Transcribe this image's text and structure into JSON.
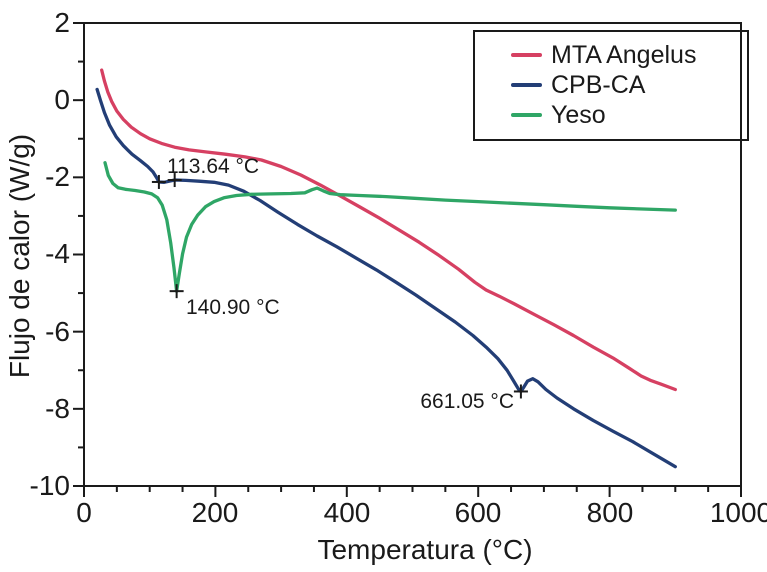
{
  "labels": {
    "x_axis": "Temperatura (°C)",
    "y_axis": "Flujo de calor (W/g)"
  },
  "axes": {
    "x_tick_labels": [
      "0",
      "200",
      "400",
      "600",
      "800",
      "1000"
    ],
    "y_tick_labels": [
      "2",
      "0",
      "-2",
      "-4",
      "-6",
      "-8",
      "-10"
    ]
  },
  "annotations": {
    "peak1": "113.64 °C",
    "peak2": "140.90 °C",
    "peak3": "661.05 °C"
  },
  "legend": {
    "items": [
      {
        "label": "MTA Angelus",
        "color": "#d64062"
      },
      {
        "label": "CPB-CA",
        "color": "#233e76"
      },
      {
        "label": "Yeso",
        "color": "#2fa666"
      }
    ]
  },
  "chart_data": {
    "type": "line",
    "title": "",
    "xlabel": "Temperatura (°C)",
    "ylabel": "Flujo de calor (W/g)",
    "xlim": [
      0,
      1000
    ],
    "ylim": [
      -10,
      2
    ],
    "x_major_ticks": [
      0,
      200,
      400,
      600,
      800,
      1000
    ],
    "x_minor_step": 50,
    "y_major_ticks": [
      2,
      0,
      -2,
      -4,
      -6,
      -8,
      -10
    ],
    "y_minor_step": 1,
    "grid": false,
    "legend_position": "top-right",
    "series": [
      {
        "name": "MTA Angelus",
        "color": "#d64062",
        "points": [
          [
            27,
            0.78
          ],
          [
            31,
            0.5
          ],
          [
            36,
            0.22
          ],
          [
            42,
            -0.03
          ],
          [
            50,
            -0.28
          ],
          [
            60,
            -0.5
          ],
          [
            72,
            -0.7
          ],
          [
            86,
            -0.87
          ],
          [
            100,
            -1.0
          ],
          [
            118,
            -1.12
          ],
          [
            138,
            -1.22
          ],
          [
            160,
            -1.29
          ],
          [
            185,
            -1.34
          ],
          [
            215,
            -1.4
          ],
          [
            245,
            -1.47
          ],
          [
            270,
            -1.55
          ],
          [
            300,
            -1.72
          ],
          [
            330,
            -1.94
          ],
          [
            360,
            -2.2
          ],
          [
            390,
            -2.48
          ],
          [
            420,
            -2.77
          ],
          [
            450,
            -3.06
          ],
          [
            480,
            -3.37
          ],
          [
            510,
            -3.68
          ],
          [
            540,
            -4.02
          ],
          [
            570,
            -4.38
          ],
          [
            595,
            -4.72
          ],
          [
            612,
            -4.92
          ],
          [
            632,
            -5.08
          ],
          [
            655,
            -5.28
          ],
          [
            685,
            -5.55
          ],
          [
            715,
            -5.82
          ],
          [
            745,
            -6.1
          ],
          [
            775,
            -6.4
          ],
          [
            805,
            -6.68
          ],
          [
            830,
            -6.95
          ],
          [
            848,
            -7.15
          ],
          [
            862,
            -7.26
          ],
          [
            878,
            -7.36
          ],
          [
            900,
            -7.5
          ]
        ]
      },
      {
        "name": "CPB-CA",
        "color": "#233e76",
        "points": [
          [
            20,
            0.28
          ],
          [
            25,
            0.0
          ],
          [
            31,
            -0.32
          ],
          [
            39,
            -0.65
          ],
          [
            49,
            -0.95
          ],
          [
            60,
            -1.18
          ],
          [
            73,
            -1.4
          ],
          [
            86,
            -1.57
          ],
          [
            97,
            -1.72
          ],
          [
            105,
            -1.86
          ],
          [
            111,
            -2.02
          ],
          [
            114,
            -2.12
          ],
          [
            122,
            -2.13
          ],
          [
            138,
            -2.07
          ],
          [
            155,
            -2.08
          ],
          [
            175,
            -2.1
          ],
          [
            198,
            -2.13
          ],
          [
            220,
            -2.2
          ],
          [
            243,
            -2.36
          ],
          [
            268,
            -2.6
          ],
          [
            295,
            -2.9
          ],
          [
            325,
            -3.22
          ],
          [
            355,
            -3.52
          ],
          [
            385,
            -3.8
          ],
          [
            415,
            -4.1
          ],
          [
            445,
            -4.4
          ],
          [
            475,
            -4.72
          ],
          [
            505,
            -5.05
          ],
          [
            535,
            -5.4
          ],
          [
            565,
            -5.75
          ],
          [
            592,
            -6.1
          ],
          [
            612,
            -6.4
          ],
          [
            630,
            -6.7
          ],
          [
            644,
            -7.0
          ],
          [
            654,
            -7.28
          ],
          [
            661,
            -7.48
          ],
          [
            665,
            -7.55
          ],
          [
            669,
            -7.45
          ],
          [
            675,
            -7.28
          ],
          [
            683,
            -7.22
          ],
          [
            691,
            -7.3
          ],
          [
            703,
            -7.5
          ],
          [
            720,
            -7.72
          ],
          [
            745,
            -8.0
          ],
          [
            775,
            -8.3
          ],
          [
            805,
            -8.58
          ],
          [
            835,
            -8.85
          ],
          [
            865,
            -9.15
          ],
          [
            900,
            -9.5
          ]
        ]
      },
      {
        "name": "Yeso",
        "color": "#2fa666",
        "points": [
          [
            32,
            -1.62
          ],
          [
            37,
            -1.95
          ],
          [
            44,
            -2.16
          ],
          [
            52,
            -2.27
          ],
          [
            63,
            -2.31
          ],
          [
            78,
            -2.34
          ],
          [
            92,
            -2.38
          ],
          [
            103,
            -2.43
          ],
          [
            112,
            -2.53
          ],
          [
            119,
            -2.72
          ],
          [
            126,
            -3.1
          ],
          [
            132,
            -3.7
          ],
          [
            137,
            -4.35
          ],
          [
            141,
            -4.95
          ],
          [
            145,
            -4.5
          ],
          [
            150,
            -3.98
          ],
          [
            156,
            -3.55
          ],
          [
            164,
            -3.22
          ],
          [
            173,
            -2.98
          ],
          [
            185,
            -2.76
          ],
          [
            198,
            -2.63
          ],
          [
            213,
            -2.53
          ],
          [
            232,
            -2.47
          ],
          [
            255,
            -2.44
          ],
          [
            285,
            -2.43
          ],
          [
            315,
            -2.42
          ],
          [
            336,
            -2.4
          ],
          [
            347,
            -2.32
          ],
          [
            355,
            -2.28
          ],
          [
            364,
            -2.35
          ],
          [
            374,
            -2.42
          ],
          [
            390,
            -2.45
          ],
          [
            420,
            -2.47
          ],
          [
            460,
            -2.5
          ],
          [
            500,
            -2.54
          ],
          [
            550,
            -2.59
          ],
          [
            600,
            -2.63
          ],
          [
            650,
            -2.67
          ],
          [
            700,
            -2.71
          ],
          [
            750,
            -2.75
          ],
          [
            800,
            -2.79
          ],
          [
            850,
            -2.82
          ],
          [
            900,
            -2.85
          ]
        ]
      }
    ],
    "annotations": [
      {
        "text": "113.64 °C",
        "series": "CPB-CA",
        "markers": [
          [
            114,
            -2.12
          ],
          [
            138,
            -2.07
          ]
        ]
      },
      {
        "text": "140.90 °C",
        "series": "Yeso",
        "markers": [
          [
            141,
            -4.95
          ]
        ]
      },
      {
        "text": "661.05 °C",
        "series": "CPB-CA",
        "markers": [
          [
            665,
            -7.55
          ]
        ]
      }
    ]
  }
}
